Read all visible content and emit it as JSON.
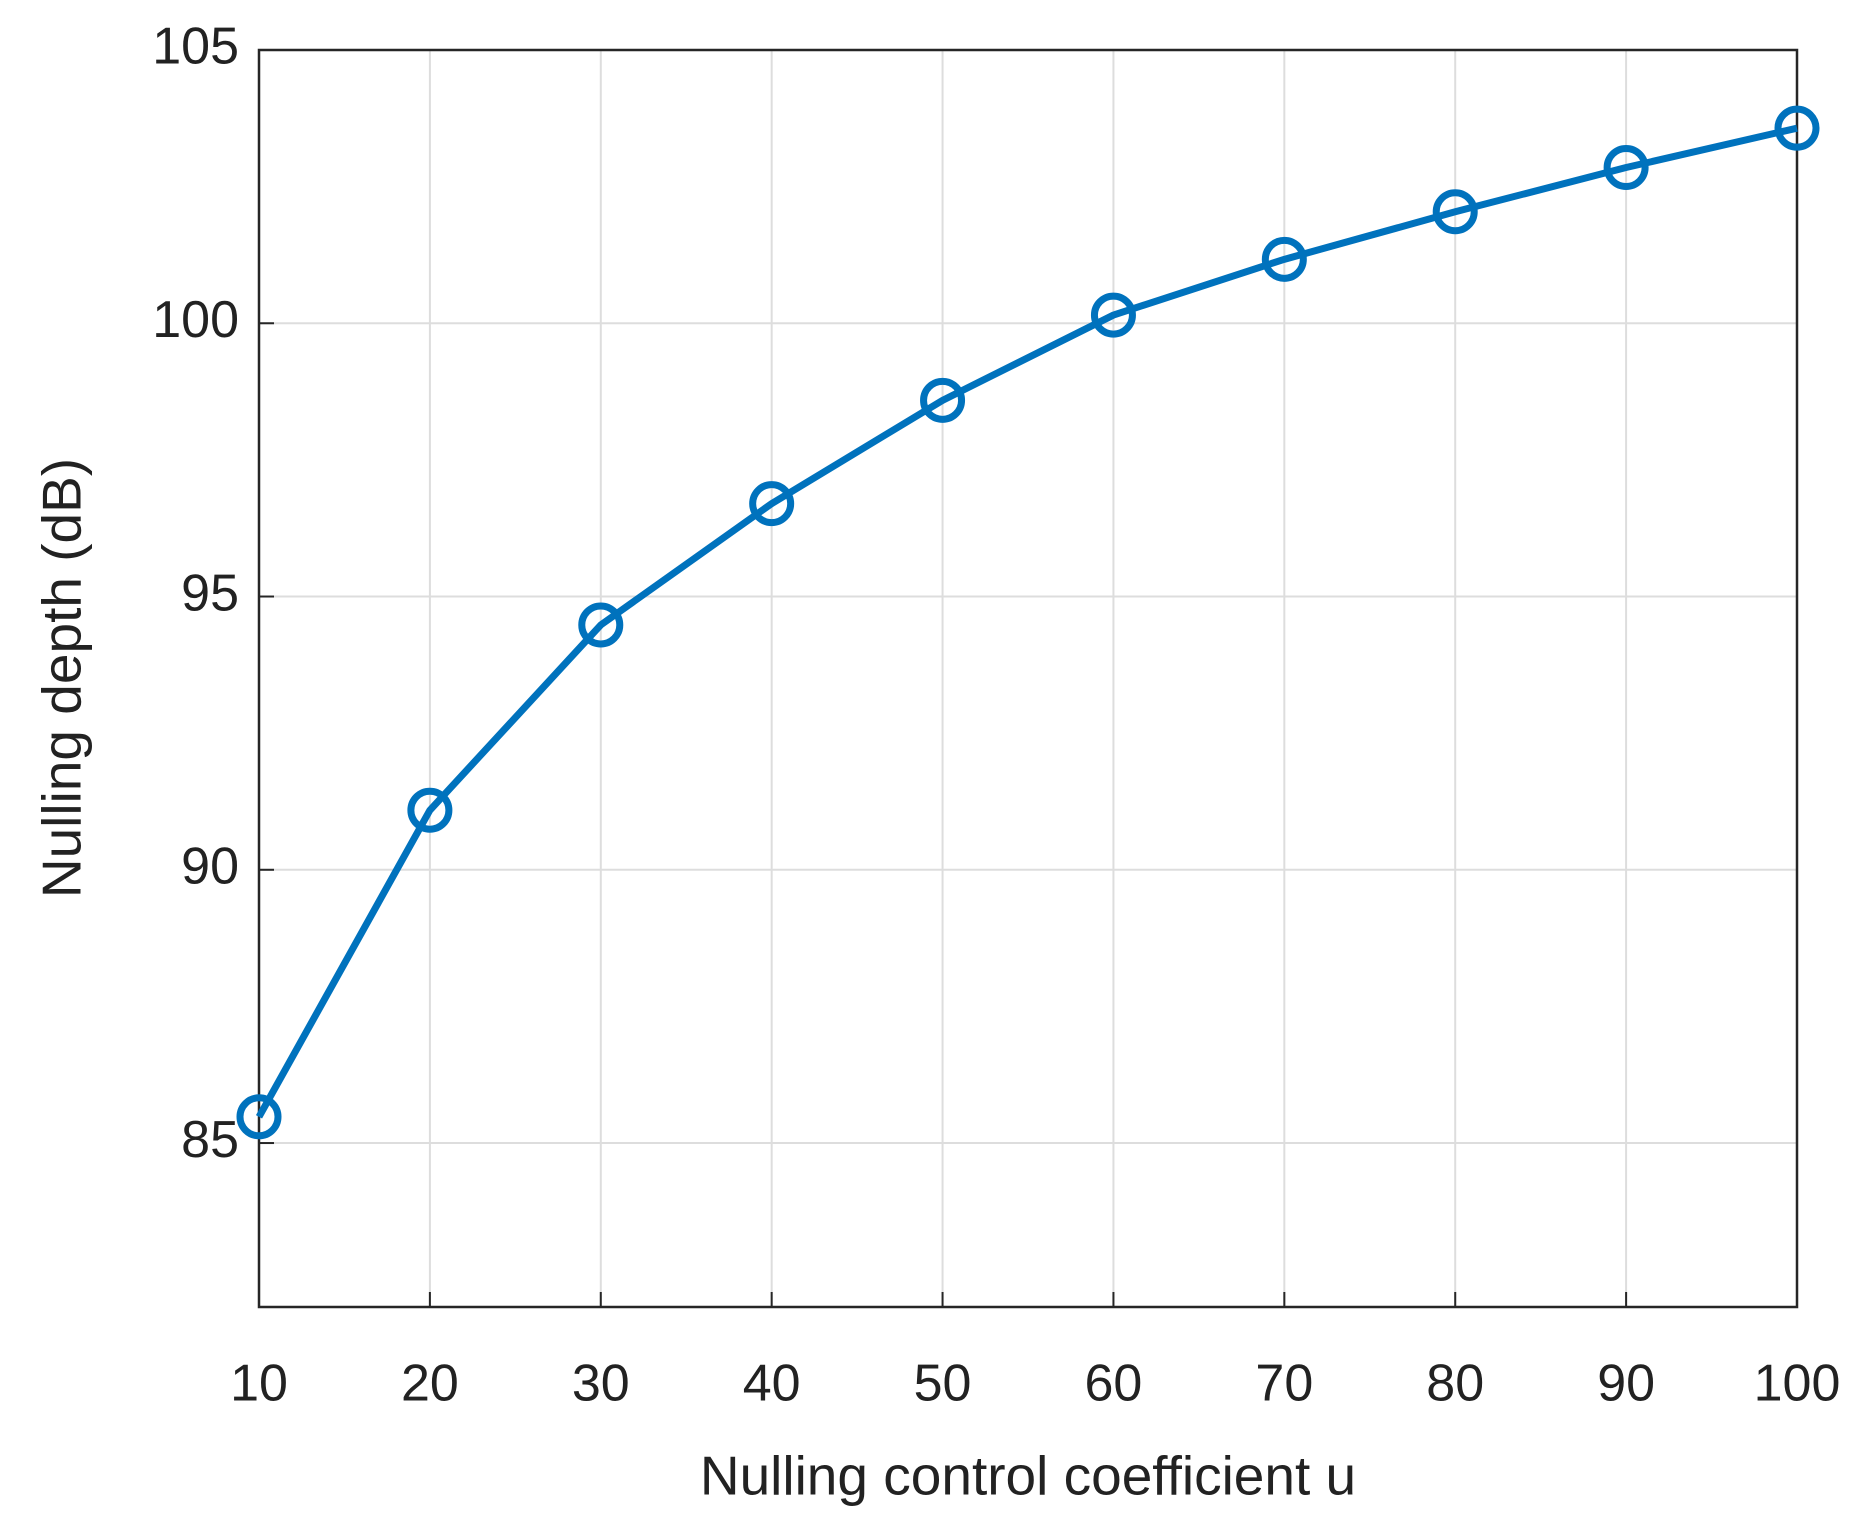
{
  "chart_data": {
    "type": "line",
    "x_label": "Nulling control coefficient  u",
    "y_label": "Nulling depth (dB)",
    "x": [
      10,
      20,
      30,
      40,
      50,
      60,
      70,
      80,
      90,
      100
    ],
    "series": [
      {
        "color": "#0072bd",
        "values": [
          85.48,
          91.09,
          94.48,
          96.7,
          98.59,
          100.15,
          101.17,
          102.04,
          102.85,
          103.57
        ]
      }
    ],
    "xlim": [
      10,
      100
    ],
    "xticks": [
      10,
      20,
      30,
      40,
      50,
      60,
      70,
      80,
      90,
      100
    ],
    "ylim": [
      82,
      105
    ],
    "yticks": [
      85,
      90,
      95,
      100,
      105
    ],
    "grid": true,
    "marker": "circle"
  }
}
